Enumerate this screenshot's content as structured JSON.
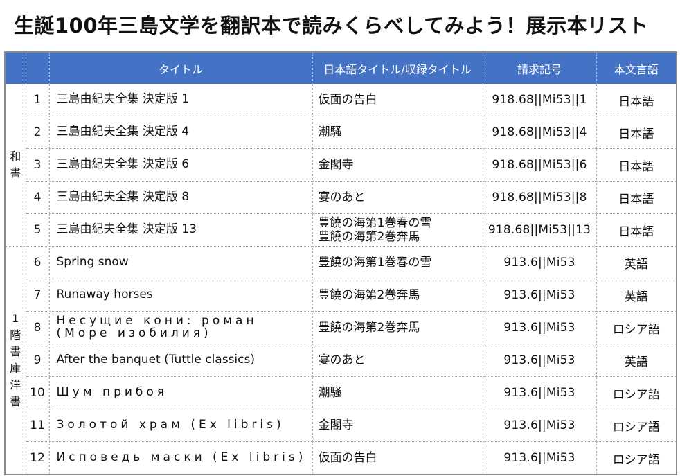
{
  "page": {
    "title": "生誕100年三島文学を翻訳本で読みくらべしてみよう！展示本リスト"
  },
  "table": {
    "headers": {
      "title": "タイトル",
      "jp_title": "日本語タイトル/収録タイトル",
      "call_no": "請求記号",
      "lang": "本文言語"
    },
    "groups": {
      "wa": "和書",
      "yo": "1階書庫洋書"
    },
    "rows": [
      {
        "no": "1",
        "title": "三島由紀夫全集 決定版 1",
        "jp": "仮面の告白",
        "jp2": "",
        "call": "918.68||Mi53||1",
        "lang": "日本語"
      },
      {
        "no": "2",
        "title": "三島由紀夫全集 決定版 4",
        "jp": "潮騒",
        "jp2": "",
        "call": "918.68||Mi53||4",
        "lang": "日本語"
      },
      {
        "no": "3",
        "title": "三島由紀夫全集 決定版 6",
        "jp": "金閣寺",
        "jp2": "",
        "call": "918.68||Mi53||6",
        "lang": "日本語"
      },
      {
        "no": "4",
        "title": "三島由紀夫全集 決定版 8",
        "jp": "宴のあと",
        "jp2": "",
        "call": "918.68||Mi53||8",
        "lang": "日本語"
      },
      {
        "no": "5",
        "title": "三島由紀夫全集 決定版 13",
        "jp": "豊饒の海第1巻春の雪",
        "jp2": "豊饒の海第2巻奔馬",
        "call": "918.68||Mi53||13",
        "lang": "日本語"
      },
      {
        "no": "6",
        "title": "Spring snow",
        "jp": "豊饒の海第1巻春の雪",
        "jp2": "",
        "call": "913.6||Mi53",
        "lang": "英語"
      },
      {
        "no": "7",
        "title": "Runaway horses",
        "jp": "豊饒の海第2巻奔馬",
        "jp2": "",
        "call": "913.6||Mi53",
        "lang": "英語"
      },
      {
        "no": "8",
        "title": "Несущие кони: роман (Море изобилия)",
        "jp": "豊饒の海第2巻奔馬",
        "jp2": "",
        "call": "913.6||Mi53",
        "lang": "ロシア語"
      },
      {
        "no": "9",
        "title": "After the banquet (Tuttle classics)",
        "jp": "宴のあと",
        "jp2": "",
        "call": "913.6||Mi53",
        "lang": "英語"
      },
      {
        "no": "10",
        "title": "Шум прибоя",
        "jp": "潮騒",
        "jp2": "",
        "call": "913.6||Mi53",
        "lang": "ロシア語"
      },
      {
        "no": "11",
        "title": "Золотой храм (Ex libris)",
        "jp": "金閣寺",
        "jp2": "",
        "call": "913.6||Mi53",
        "lang": "ロシア語"
      },
      {
        "no": "12",
        "title": "Исповедь маски (Ex libris)",
        "jp": "仮面の告白",
        "jp2": "",
        "call": "913.6||Mi53",
        "lang": "ロシア語"
      }
    ]
  }
}
